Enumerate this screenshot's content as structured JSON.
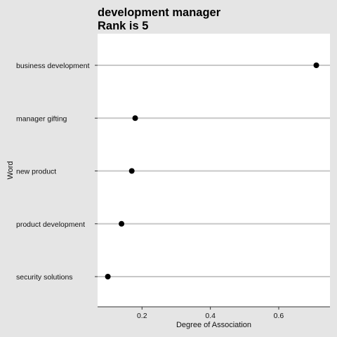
{
  "chart_data": {
    "type": "scatter",
    "title": "development manager",
    "subtitle": "Rank is 5",
    "xlabel": "Degree of Association",
    "ylabel": "Word",
    "xlim": [
      0.07,
      0.75
    ],
    "x_ticks": [
      0.2,
      0.4,
      0.6
    ],
    "x_tick_labels": [
      "0.2",
      "0.4",
      "0.6"
    ],
    "categories": [
      "business development",
      "manager gifting",
      "new product",
      "product development",
      "security solutions"
    ],
    "values": [
      0.71,
      0.18,
      0.17,
      0.14,
      0.1
    ],
    "grid": "horizontal lines at categories",
    "background": "#e5e5e5",
    "panel_color": "#ffffff",
    "point_color": "#000000",
    "gridline_color": "#c8c8c8"
  }
}
